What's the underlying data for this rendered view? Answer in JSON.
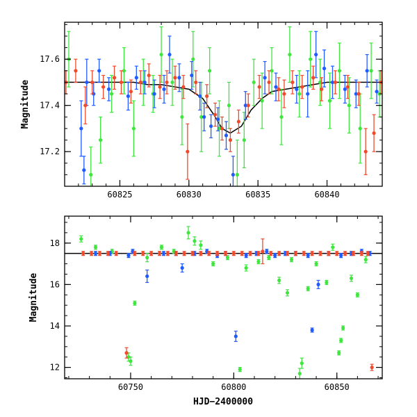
{
  "colors": {
    "blue": "#1f5bff",
    "red": "#f04a2c",
    "green": "#3ee63e",
    "model": "#000000",
    "axis": "#000000"
  },
  "chart_data": [
    {
      "id": "top",
      "type": "scatter",
      "xlim": [
        60821,
        60844
      ],
      "ylim": [
        17.76,
        17.05
      ],
      "xticks": [
        60825,
        60830,
        60835,
        60840
      ],
      "xtick_labels": [
        "60825",
        "60830",
        "60835",
        "60840"
      ],
      "yticks": [
        17.2,
        17.4,
        17.6
      ],
      "ytick_labels": [
        "17.2",
        "17.4",
        "17.6"
      ],
      "xlabel": "",
      "ylabel": "Magnitude",
      "model_curve": {
        "x": [
          60821,
          60822,
          60823,
          60824,
          60825,
          60826,
          60827,
          60828,
          60829,
          60830,
          60831,
          60831.8,
          60832.4,
          60833,
          60833.8,
          60834.5,
          60835.3,
          60836,
          60837,
          60838,
          60839,
          60840,
          60841,
          60842,
          60843,
          60844
        ],
        "y": [
          17.5,
          17.5,
          17.5,
          17.5,
          17.5,
          17.5,
          17.49,
          17.49,
          17.48,
          17.47,
          17.43,
          17.36,
          17.3,
          17.28,
          17.31,
          17.38,
          17.43,
          17.46,
          17.47,
          17.48,
          17.49,
          17.5,
          17.5,
          17.5,
          17.5,
          17.5
        ]
      },
      "series": [
        {
          "name": "blue",
          "color_key": "blue",
          "x": [
            60822.2,
            60822.4,
            60822.6,
            60823.1,
            60823.5,
            60824.2,
            60825.6,
            60826.2,
            60826.8,
            60827.5,
            60828.2,
            60828.6,
            60829.3,
            60830.2,
            60830.8,
            60831.1,
            60831.6,
            60832.1,
            60832.7,
            60833.2,
            60834.1,
            60835.5,
            60836.3,
            60837.8,
            60838.6,
            60839.2,
            60839.8,
            60840.4,
            60841.3,
            60842.1,
            60842.9,
            60843.6
          ],
          "y": [
            17.3,
            17.12,
            17.5,
            17.45,
            17.55,
            17.47,
            17.44,
            17.52,
            17.5,
            17.45,
            17.47,
            17.62,
            17.52,
            17.53,
            17.44,
            17.35,
            17.31,
            17.34,
            17.27,
            17.1,
            17.4,
            17.52,
            17.48,
            17.47,
            17.45,
            17.62,
            17.56,
            17.5,
            17.47,
            17.45,
            17.55,
            17.46
          ],
          "err": [
            0.12,
            0.06,
            0.1,
            0.05,
            0.05,
            0.05,
            0.06,
            0.05,
            0.05,
            0.06,
            0.06,
            0.08,
            0.06,
            0.06,
            0.06,
            0.06,
            0.05,
            0.05,
            0.06,
            0.08,
            0.06,
            0.07,
            0.06,
            0.06,
            0.1,
            0.1,
            0.08,
            0.07,
            0.06,
            0.06,
            0.07,
            0.05
          ]
        },
        {
          "name": "red",
          "color_key": "red",
          "x": [
            60821.1,
            60821.8,
            60822.5,
            60823.0,
            60823.8,
            60824.6,
            60825.1,
            60825.8,
            60826.5,
            60827.1,
            60827.9,
            60828.4,
            60829.0,
            60829.6,
            60829.9,
            60830.5,
            60831.3,
            60831.9,
            60832.4,
            60833.0,
            60833.6,
            60834.3,
            60835.1,
            60835.8,
            60836.5,
            60836.9,
            60837.5,
            60838.2,
            60839.0,
            60839.6,
            60840.6,
            60841.5,
            60842.3,
            60842.8,
            60843.4,
            60843.9
          ],
          "y": [
            17.5,
            17.55,
            17.4,
            17.5,
            17.48,
            17.52,
            17.5,
            17.46,
            17.5,
            17.53,
            17.48,
            17.5,
            17.52,
            17.48,
            17.2,
            17.5,
            17.44,
            17.36,
            17.3,
            17.25,
            17.33,
            17.4,
            17.48,
            17.5,
            17.47,
            17.45,
            17.5,
            17.48,
            17.52,
            17.47,
            17.5,
            17.48,
            17.45,
            17.2,
            17.28,
            17.5
          ],
          "err": [
            0.05,
            0.05,
            0.08,
            0.05,
            0.05,
            0.05,
            0.05,
            0.05,
            0.05,
            0.05,
            0.05,
            0.05,
            0.05,
            0.05,
            0.12,
            0.05,
            0.05,
            0.05,
            0.05,
            0.05,
            0.05,
            0.05,
            0.05,
            0.05,
            0.05,
            0.06,
            0.05,
            0.05,
            0.05,
            0.05,
            0.05,
            0.05,
            0.05,
            0.1,
            0.08,
            0.05
          ]
        },
        {
          "name": "green",
          "color_key": "green",
          "x": [
            60821.3,
            60822.9,
            60823.6,
            60824.4,
            60825.3,
            60826.0,
            60826.7,
            60827.4,
            60828.0,
            60828.8,
            60829.5,
            60830.3,
            60830.9,
            60831.5,
            60832.2,
            60832.9,
            60833.5,
            60834.0,
            60834.7,
            60835.3,
            60836.0,
            60836.7,
            60837.3,
            60838.0,
            60838.8,
            60839.5,
            60840.2,
            60840.9,
            60841.6,
            60842.4,
            60843.2,
            60843.8
          ],
          "y": [
            17.6,
            17.1,
            17.25,
            17.45,
            17.55,
            17.3,
            17.5,
            17.45,
            17.62,
            17.5,
            17.35,
            17.6,
            17.35,
            17.55,
            17.3,
            17.4,
            17.1,
            17.25,
            17.5,
            17.42,
            17.55,
            17.35,
            17.62,
            17.45,
            17.6,
            17.5,
            17.42,
            17.55,
            17.4,
            17.3,
            17.55,
            17.45
          ],
          "err": [
            0.12,
            0.12,
            0.1,
            0.08,
            0.1,
            0.12,
            0.1,
            0.08,
            0.12,
            0.1,
            0.12,
            0.12,
            0.15,
            0.1,
            0.12,
            0.1,
            0.15,
            0.12,
            0.1,
            0.12,
            0.1,
            0.12,
            0.12,
            0.1,
            0.12,
            0.1,
            0.12,
            0.12,
            0.12,
            0.15,
            0.12,
            0.1
          ]
        }
      ]
    },
    {
      "id": "bottom",
      "type": "scatter",
      "xlim": [
        60718,
        60872
      ],
      "ylim": [
        19.3,
        11.45
      ],
      "xticks": [
        60750,
        60800,
        60850
      ],
      "xtick_labels": [
        "60750",
        "60800",
        "60850"
      ],
      "yticks": [
        12,
        14,
        16,
        18
      ],
      "ytick_labels": [
        "12",
        "14",
        "16",
        "18"
      ],
      "xlabel": "HJD−2400000",
      "ylabel": "Magnitude",
      "model_line_y": 17.5,
      "series": [
        {
          "name": "blue",
          "color_key": "blue",
          "x": [
            60733,
            60740,
            60749,
            60751,
            60758,
            60766,
            60772,
            60775,
            60781,
            60787,
            60792,
            60796,
            60801,
            60806,
            60811,
            60816,
            60820,
            60825,
            60830,
            60836,
            60838,
            60841,
            60846,
            60852,
            60857,
            60862,
            60866
          ],
          "y": [
            17.5,
            17.5,
            17.4,
            17.6,
            16.4,
            17.5,
            17.5,
            16.8,
            17.5,
            17.6,
            17.4,
            17.5,
            13.5,
            17.4,
            17.5,
            17.6,
            17.4,
            17.5,
            17.5,
            17.4,
            13.8,
            16.0,
            17.5,
            17.4,
            17.5,
            17.6,
            17.5
          ],
          "err": [
            0.1,
            0.1,
            0.1,
            0.1,
            0.3,
            0.1,
            0.1,
            0.2,
            0.1,
            0.1,
            0.1,
            0.1,
            0.25,
            0.1,
            0.1,
            0.1,
            0.1,
            0.1,
            0.1,
            0.1,
            0.1,
            0.2,
            0.1,
            0.1,
            0.1,
            0.1,
            0.1
          ]
        },
        {
          "name": "red",
          "color_key": "red",
          "x": [
            60727,
            60731,
            60735,
            60739,
            60743,
            60748,
            60752,
            60756,
            60760,
            60764,
            60768,
            60772,
            60776,
            60780,
            60784,
            60788,
            60792,
            60796,
            60800,
            60804,
            60808,
            60812,
            60814,
            60818,
            60822,
            60826,
            60830,
            60834,
            60838,
            60842,
            60846,
            60850,
            60854,
            60858,
            60862,
            60865,
            60867
          ],
          "y": [
            17.5,
            17.5,
            17.5,
            17.5,
            17.5,
            12.7,
            17.5,
            17.5,
            17.5,
            17.5,
            17.5,
            17.5,
            17.5,
            17.5,
            17.5,
            17.5,
            17.5,
            17.5,
            17.5,
            17.5,
            17.5,
            17.5,
            17.6,
            17.5,
            17.5,
            17.5,
            17.5,
            17.5,
            17.5,
            17.5,
            17.5,
            17.5,
            17.5,
            17.5,
            17.5,
            17.5,
            12.0
          ],
          "err": [
            0.1,
            0.1,
            0.1,
            0.1,
            0.1,
            0.25,
            0.1,
            0.1,
            0.1,
            0.1,
            0.1,
            0.1,
            0.1,
            0.1,
            0.1,
            0.1,
            0.1,
            0.1,
            0.1,
            0.1,
            0.1,
            0.1,
            0.6,
            0.1,
            0.1,
            0.1,
            0.1,
            0.1,
            0.1,
            0.1,
            0.1,
            0.1,
            0.1,
            0.1,
            0.1,
            0.1,
            0.15
          ]
        },
        {
          "name": "green",
          "color_key": "green",
          "x": [
            60726,
            60733,
            60741,
            60749,
            60750,
            60752,
            60758,
            60765,
            60771,
            60778,
            60781,
            60784,
            60790,
            60797,
            60803,
            60806,
            60812,
            60817,
            60822,
            60826,
            60828,
            60832,
            60833,
            60836,
            60840,
            60845,
            60848,
            60851,
            60852,
            60853,
            60857,
            60860,
            60864
          ],
          "y": [
            18.2,
            17.8,
            17.6,
            12.5,
            12.3,
            15.1,
            17.3,
            17.8,
            17.6,
            18.5,
            18.1,
            17.9,
            17.0,
            17.3,
            11.9,
            16.8,
            17.1,
            17.3,
            16.2,
            15.6,
            17.2,
            11.7,
            12.2,
            15.8,
            17.0,
            16.1,
            17.8,
            12.7,
            13.3,
            13.9,
            16.3,
            15.5,
            17.2
          ],
          "err": [
            0.15,
            0.1,
            0.1,
            0.2,
            0.2,
            0.1,
            0.2,
            0.1,
            0.1,
            0.3,
            0.2,
            0.2,
            0.1,
            0.1,
            0.1,
            0.15,
            0.1,
            0.1,
            0.15,
            0.15,
            0.1,
            0.25,
            0.25,
            0.1,
            0.1,
            0.1,
            0.15,
            0.1,
            0.1,
            0.1,
            0.15,
            0.1,
            0.15
          ]
        }
      ]
    }
  ]
}
